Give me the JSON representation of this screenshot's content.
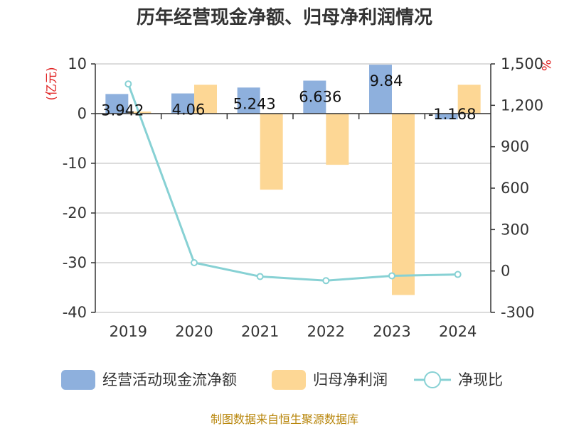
{
  "title": "历年经营现金净额、归母净利润情况",
  "source": "制图数据来自恒生聚源数据库",
  "colors": {
    "cash": "#8eb0dd",
    "profit": "#fdd795",
    "ratio": "#87d1d4",
    "unit": "#e02020"
  },
  "chart_data": {
    "type": "bar",
    "title": "历年经营现金净额、归母净利润情况",
    "categories": [
      "2019",
      "2020",
      "2021",
      "2022",
      "2023",
      "2024"
    ],
    "left_axis": {
      "unit": "(亿元)",
      "ylim": [
        -40,
        10
      ],
      "ticks": [
        10,
        0,
        -10,
        -20,
        -30,
        -40
      ]
    },
    "right_axis": {
      "unit": "%",
      "ylim": [
        -300,
        1500
      ],
      "ticks": [
        1500,
        1200,
        900,
        600,
        300,
        0,
        -300
      ],
      "tick_labels": [
        "1,500",
        "1,200",
        "900",
        "600",
        "300",
        "0",
        "-300"
      ]
    },
    "series": [
      {
        "name": "经营活动现金流净额",
        "type": "bar",
        "axis": "left",
        "values": [
          3.942,
          4.06,
          5.243,
          6.636,
          9.84,
          -1.168
        ],
        "labels": [
          "3.942",
          "4.06",
          "5.243",
          "6.636",
          "9.84",
          "-1.168"
        ]
      },
      {
        "name": "归母净利润",
        "type": "bar",
        "axis": "left",
        "values": [
          0.4,
          5.8,
          -15.3,
          -10.3,
          -36.5,
          5.8
        ]
      },
      {
        "name": "净现比",
        "type": "line",
        "axis": "right",
        "values": [
          1355,
          60,
          -40,
          -70,
          -35,
          -25
        ]
      }
    ],
    "grid": true,
    "legend": "bottom"
  }
}
